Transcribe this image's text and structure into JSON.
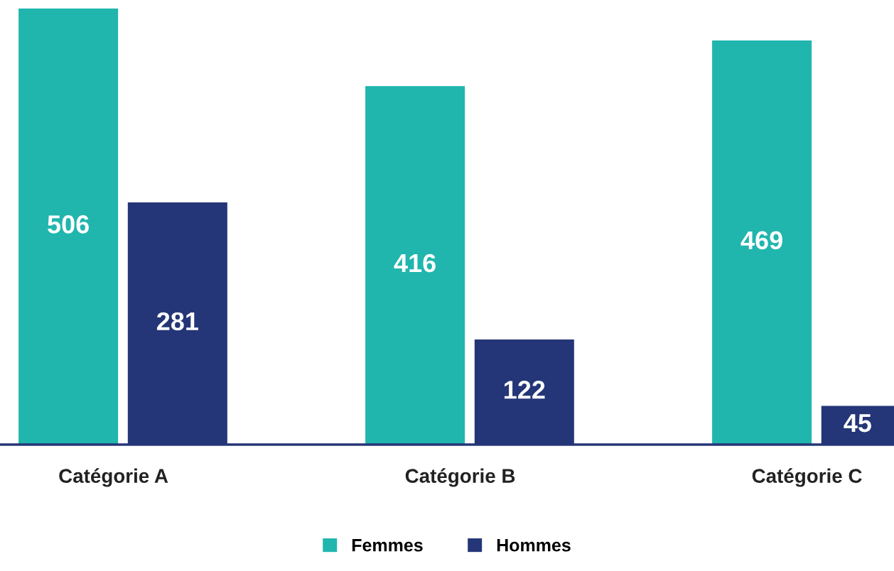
{
  "chart_data": {
    "type": "bar",
    "categories": [
      "Catégorie A",
      "Catégorie B",
      "Catégorie C"
    ],
    "series": [
      {
        "name": "Femmes",
        "color": "#20b6ae",
        "values": [
          506,
          416,
          469
        ]
      },
      {
        "name": "Hommes",
        "color": "#243677",
        "values": [
          281,
          122,
          45
        ]
      }
    ],
    "data_labels": true,
    "grid": false,
    "legend": "bottom"
  }
}
